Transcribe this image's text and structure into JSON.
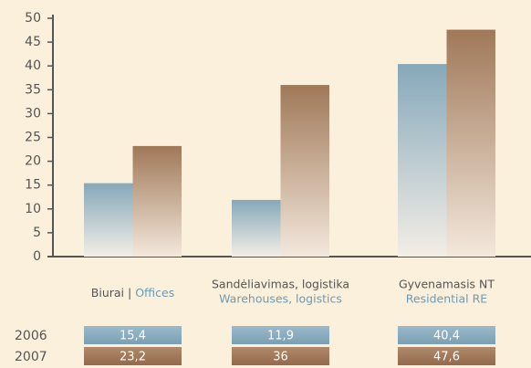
{
  "chart_data": {
    "type": "bar",
    "categories": [
      "Biurai",
      "Sandėliavimas, logistika",
      "Gyvenamasis NT"
    ],
    "category_translations": [
      "Offices",
      "Warehouses, logistics",
      "Residential RE"
    ],
    "series": [
      {
        "name": "2006",
        "color": "#86a8ba",
        "values": [
          15.4,
          11.9,
          40.4
        ],
        "value_labels": [
          "15,4",
          "11,9",
          "40,4"
        ]
      },
      {
        "name": "2007",
        "color": "#a07858",
        "values": [
          23.2,
          36,
          47.6
        ],
        "value_labels": [
          "23,2",
          "36",
          "47,6"
        ]
      }
    ],
    "ylim": [
      0,
      50
    ],
    "yticks": [
      0,
      5,
      10,
      15,
      20,
      25,
      30,
      35,
      40,
      45,
      50
    ]
  }
}
